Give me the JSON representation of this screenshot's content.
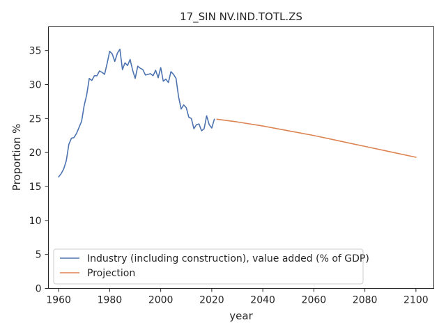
{
  "chart_data": {
    "type": "line",
    "title": "17_SIN NV.IND.TOTL.ZS",
    "xlabel": "year",
    "ylabel": "Proportion %",
    "xlim": [
      1956,
      2107
    ],
    "ylim": [
      0,
      38.5
    ],
    "x_ticks": [
      1960,
      1980,
      2000,
      2020,
      2040,
      2060,
      2080,
      2100
    ],
    "y_ticks": [
      0,
      5,
      10,
      15,
      20,
      25,
      30,
      35
    ],
    "grid": false,
    "legend_position": "lower-left",
    "series": [
      {
        "name": "Industry (including construction), value added (% of GDP)",
        "color": "#4c72b0",
        "x": [
          1960,
          1961,
          1962,
          1963,
          1964,
          1965,
          1966,
          1967,
          1968,
          1969,
          1970,
          1971,
          1972,
          1973,
          1974,
          1975,
          1976,
          1977,
          1978,
          1979,
          1980,
          1981,
          1982,
          1983,
          1984,
          1985,
          1986,
          1987,
          1988,
          1989,
          1990,
          1991,
          1992,
          1993,
          1994,
          1995,
          1996,
          1997,
          1998,
          1999,
          2000,
          2001,
          2002,
          2003,
          2004,
          2005,
          2006,
          2007,
          2008,
          2009,
          2010,
          2011,
          2012,
          2013,
          2014,
          2015,
          2016,
          2017,
          2018,
          2019,
          2020,
          2021
        ],
        "values": [
          16.4,
          16.9,
          17.6,
          18.8,
          21.2,
          22.1,
          22.2,
          22.8,
          23.7,
          24.6,
          26.9,
          28.5,
          30.9,
          30.6,
          31.3,
          31.3,
          32.0,
          31.8,
          31.5,
          33.1,
          34.9,
          34.5,
          33.4,
          34.6,
          35.2,
          32.2,
          33.2,
          32.8,
          33.7,
          32.1,
          30.9,
          32.7,
          32.4,
          32.2,
          31.4,
          31.5,
          31.6,
          31.3,
          32.1,
          31.0,
          32.5,
          30.5,
          30.8,
          30.3,
          31.9,
          31.5,
          30.9,
          28.2,
          26.4,
          27.0,
          26.6,
          25.2,
          25.0,
          23.5,
          24.1,
          24.2,
          23.2,
          23.5,
          25.4,
          24.1,
          23.6,
          24.9
        ]
      },
      {
        "name": "Projection",
        "color": "#dd8452",
        "x": [
          2022,
          2030,
          2040,
          2050,
          2060,
          2070,
          2080,
          2090,
          2100
        ],
        "values": [
          24.9,
          24.5,
          23.9,
          23.2,
          22.5,
          21.7,
          20.9,
          20.1,
          19.3
        ]
      }
    ]
  }
}
